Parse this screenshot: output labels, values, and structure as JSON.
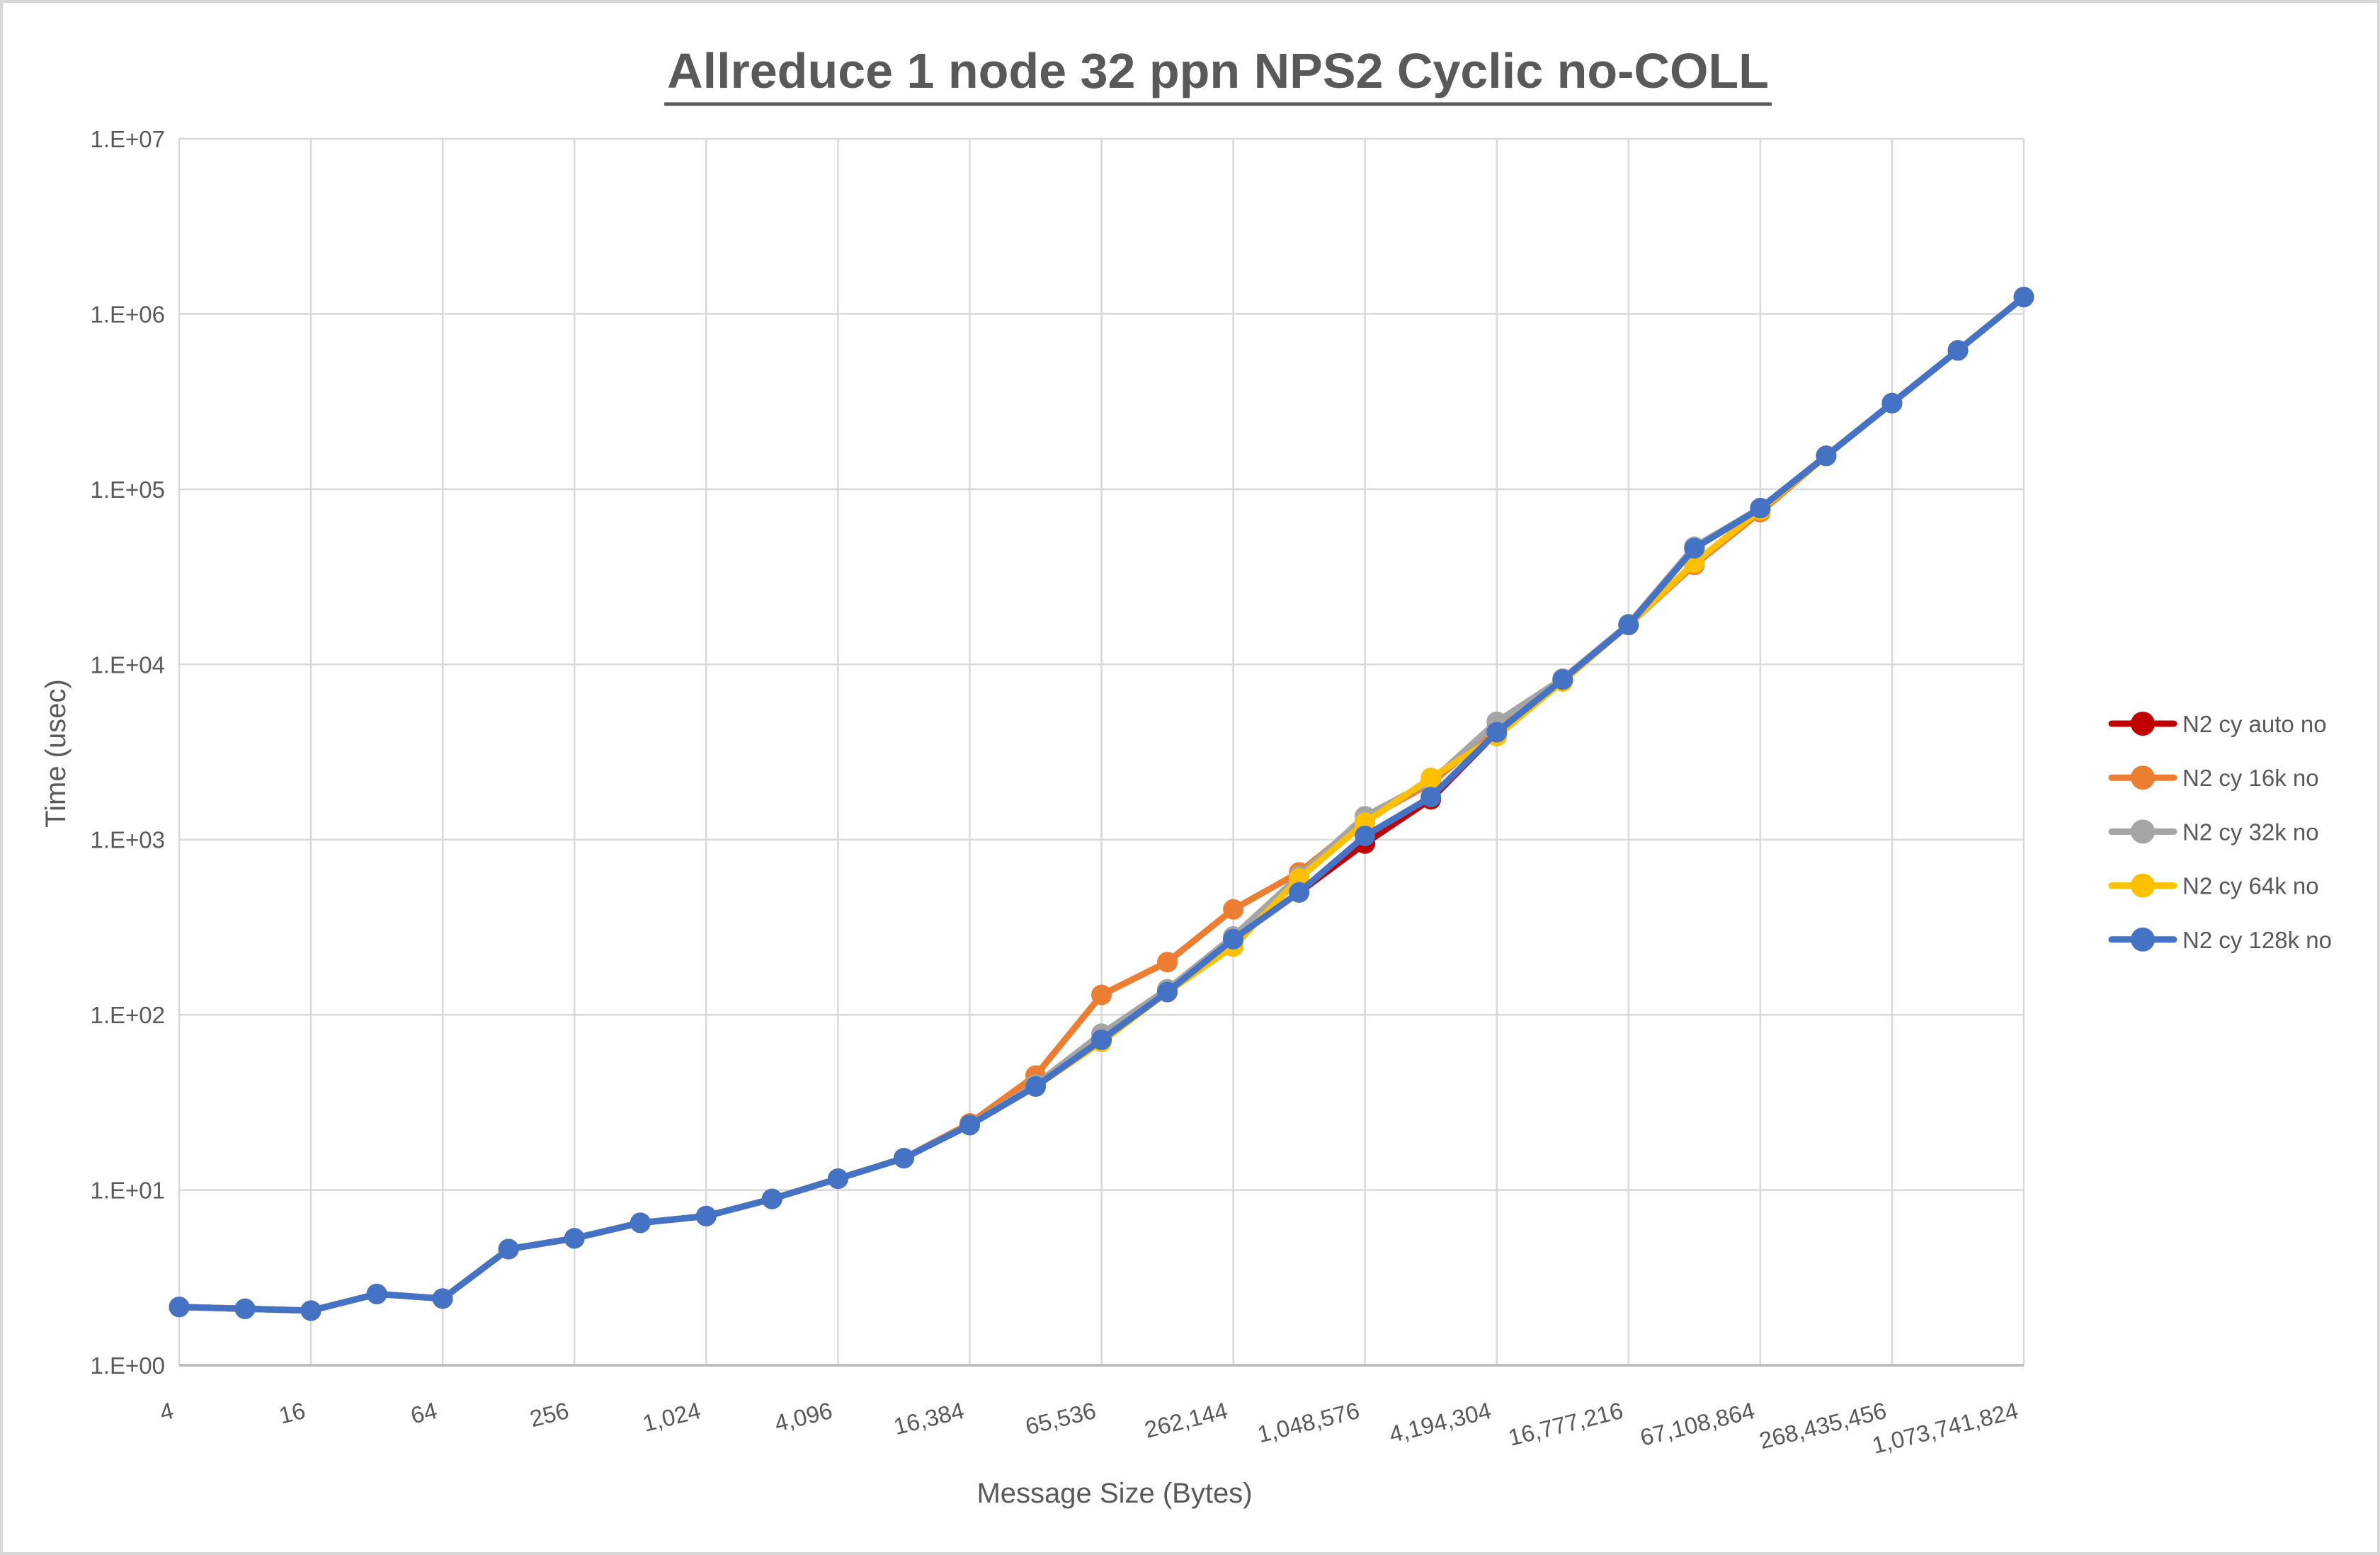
{
  "window": {
    "background": "#FFFFFF",
    "border_color": "#D8D8D8",
    "text_color": "#595959",
    "gridline_color": "#D9D9D9",
    "axis_line_color": "#BFBFBF"
  },
  "chart_data": {
    "type": "line",
    "title": "Allreduce 1 node 32 ppn NPS2 Cyclic no-COLL",
    "xlabel": "Message Size (Bytes)",
    "ylabel": "Time (usec)",
    "x_scale": "log2",
    "y_scale": "log10",
    "ylim": [
      1,
      10000000
    ],
    "grid": true,
    "legend_position": "right",
    "y_tick_labels": [
      "1.E+00",
      "1.E+01",
      "1.E+02",
      "1.E+03",
      "1.E+04",
      "1.E+05",
      "1.E+06",
      "1.E+07"
    ],
    "x_tick_values": [
      4,
      16,
      64,
      256,
      1024,
      4096,
      16384,
      65536,
      262144,
      1048576,
      4194304,
      16777216,
      67108864,
      268435456,
      1073741824
    ],
    "x_tick_labels": [
      "4",
      "16",
      "64",
      "256",
      "1,024",
      "4,096",
      "16,384",
      "65,536",
      "262,144",
      "1,048,576",
      "4,194,304",
      "16,777,216",
      "67,108,864",
      "268,435,456",
      "1,073,741,824"
    ],
    "x": [
      4,
      8,
      16,
      32,
      64,
      128,
      256,
      512,
      1024,
      2048,
      4096,
      8192,
      16384,
      32768,
      65536,
      131072,
      262144,
      524288,
      1048576,
      2097152,
      4194304,
      8388608,
      16777216,
      33554432,
      67108864,
      134217728,
      268435456,
      536870912,
      1073741824
    ],
    "series": [
      {
        "name": "N2 cy auto no",
        "color": "#C00000",
        "values": [
          2.15,
          2.1,
          2.05,
          2.55,
          2.4,
          4.6,
          5.3,
          6.5,
          7.1,
          8.9,
          11.6,
          15.2,
          23.5,
          39,
          72,
          135,
          270,
          500,
          950,
          1700,
          4100,
          8200,
          16800,
          46000,
          78000,
          155000,
          310000,
          620000,
          1250000
        ]
      },
      {
        "name": "N2 cy 16k no",
        "color": "#ED7D31",
        "values": [
          2.15,
          2.1,
          2.05,
          2.55,
          2.4,
          4.6,
          5.3,
          6.5,
          7.1,
          8.9,
          11.6,
          15.2,
          24,
          45,
          130,
          200,
          400,
          650,
          1300,
          2100,
          4300,
          8000,
          16800,
          37000,
          74000,
          155000,
          310000,
          620000,
          1250000
        ]
      },
      {
        "name": "N2 cy 32k no",
        "color": "#A5A5A5",
        "values": [
          2.15,
          2.1,
          2.05,
          2.55,
          2.4,
          4.6,
          5.3,
          6.5,
          7.1,
          8.9,
          11.6,
          15.2,
          23.5,
          40,
          78,
          140,
          280,
          620,
          1360,
          2150,
          4700,
          8300,
          17000,
          47000,
          78000,
          155000,
          310000,
          620000,
          1250000
        ]
      },
      {
        "name": "N2 cy 64k no",
        "color": "#FFC000",
        "values": [
          2.15,
          2.1,
          2.05,
          2.55,
          2.4,
          4.6,
          5.3,
          6.5,
          7.1,
          8.9,
          11.6,
          15.2,
          23.5,
          39,
          70,
          135,
          245,
          600,
          1250,
          2250,
          3900,
          8000,
          16800,
          38000,
          76000,
          155000,
          310000,
          620000,
          1250000
        ]
      },
      {
        "name": "N2 cy 128k no",
        "color": "#4472C4",
        "values": [
          2.15,
          2.1,
          2.05,
          2.55,
          2.4,
          4.6,
          5.3,
          6.5,
          7.1,
          8.9,
          11.6,
          15.2,
          23.5,
          39,
          72,
          135,
          270,
          500,
          1050,
          1750,
          4100,
          8200,
          16800,
          46000,
          78000,
          155000,
          310000,
          620000,
          1250000
        ]
      }
    ]
  }
}
